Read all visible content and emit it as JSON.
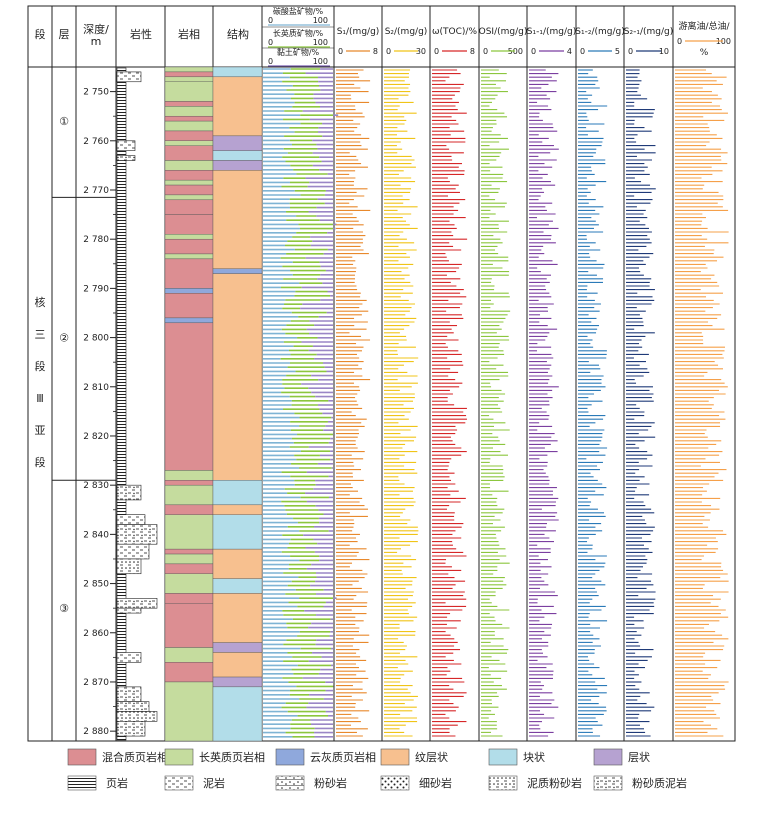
{
  "headers": {
    "segment": "段",
    "layer": "层",
    "depth": "深度/\nm",
    "lithology": "岩性",
    "facies": "岩相",
    "structure": "结构"
  },
  "mineral_header": {
    "carbonate": "碳酸盐矿物/%",
    "carbonate_scale": [
      "0",
      "100"
    ],
    "felsic": "长英质矿物/%",
    "felsic_scale": [
      "0",
      "100"
    ],
    "clay": "黏土矿物/%",
    "clay_scale": [
      "0",
      "100"
    ]
  },
  "log_tracks": [
    {
      "label": "S₁/(mg/g)",
      "min": "0",
      "max": "8",
      "color": "#e8892c"
    },
    {
      "label": "S₂/(mg/g)",
      "min": "0",
      "max": "30",
      "color": "#f0c418"
    },
    {
      "label": "ω(TOC)/%",
      "min": "0",
      "max": "8",
      "color": "#d62728"
    },
    {
      "label": "OSI/(mg/g)",
      "min": "0",
      "max": "500",
      "color": "#8cc63e"
    },
    {
      "label": "S₁-₁/(mg/g)",
      "min": "0",
      "max": "4",
      "color": "#7b3fa0"
    },
    {
      "label": "S₁-₂/(mg/g)",
      "min": "0",
      "max": "5",
      "color": "#2a7ab8"
    },
    {
      "label": "S₂-₁/(mg/g)",
      "min": "0",
      "max": "10",
      "color": "#1f3a78"
    },
    {
      "label": "游离油/总油/%",
      "min": "0",
      "max": "100",
      "color": "#f5a04a"
    }
  ],
  "segment_label": [
    "核",
    "三",
    "段",
    "Ⅲ",
    "亚",
    "段"
  ],
  "layers": [
    "①",
    "②",
    "③"
  ],
  "depth_ticks": [
    "2 750",
    "2 760",
    "2 770",
    "2 780",
    "2 790",
    "2 800",
    "2 810",
    "2 820",
    "2 830",
    "2 840",
    "2 850",
    "2 860",
    "2 870",
    "2 880"
  ],
  "colors": {
    "mixed_facies": "#dc8e92",
    "felsic_facies": "#c5dc9e",
    "dolomitic_facies": "#8fa8dc",
    "laminated": "#f7c08f",
    "massive": "#b2dde9",
    "layered": "#b6a2d1"
  },
  "legend": {
    "mixed_facies": "混合质页岩相",
    "felsic_facies": "长英质页岩相",
    "dolomitic_facies": "云灰质页岩相",
    "laminated": "纹层状",
    "massive": "块状",
    "layered": "层状",
    "shale": "页岩",
    "mudstone": "泥岩",
    "siltstone": "粉砂岩",
    "fine_sandstone": "细砂岩",
    "muddy_siltstone": "泥质粉砂岩",
    "silty_mudstone": "粉砂质泥岩"
  }
}
